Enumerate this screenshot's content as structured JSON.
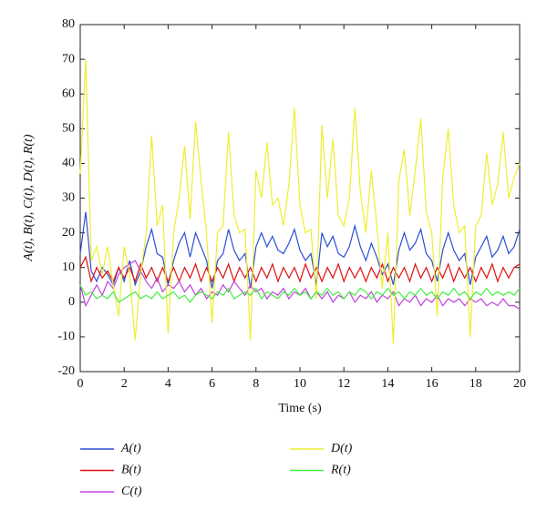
{
  "chart_data": {
    "type": "line",
    "xlabel": "Time (s)",
    "ylabel": "A(t), B(t), C(t), D(t), R(t)",
    "x": [
      0,
      0.25,
      0.5,
      0.75,
      1,
      1.25,
      1.5,
      1.75,
      2,
      2.25,
      2.5,
      2.75,
      3,
      3.25,
      3.5,
      3.75,
      4,
      4.25,
      4.5,
      4.75,
      5,
      5.25,
      5.5,
      5.75,
      6,
      6.25,
      6.5,
      6.75,
      7,
      7.25,
      7.5,
      7.75,
      8,
      8.25,
      8.5,
      8.75,
      9,
      9.25,
      9.5,
      9.75,
      10,
      10.25,
      10.5,
      10.75,
      11,
      11.25,
      11.5,
      11.75,
      12,
      12.25,
      12.5,
      12.75,
      13,
      13.25,
      13.5,
      13.75,
      14,
      14.25,
      14.5,
      14.75,
      15,
      15.25,
      15.5,
      15.75,
      16,
      16.25,
      16.5,
      16.75,
      17,
      17.25,
      17.5,
      17.75,
      18,
      18.25,
      18.5,
      18.75,
      19,
      19.25,
      19.5,
      19.75,
      20
    ],
    "series": [
      {
        "name": "A(t)",
        "color": "#2b4fd6",
        "values": [
          14,
          26,
          9,
          6,
          10,
          8,
          5,
          10,
          6,
          12,
          5,
          9,
          16,
          21,
          14,
          13,
          5,
          12,
          17,
          20,
          13,
          20,
          16,
          12,
          4,
          12,
          14,
          21,
          15,
          12,
          14,
          4,
          16,
          20,
          16,
          19,
          15,
          14,
          17,
          21,
          15,
          12,
          14,
          5,
          20,
          16,
          19,
          14,
          13,
          16,
          22,
          16,
          12,
          17,
          13,
          8,
          11,
          5,
          15,
          20,
          15,
          17,
          21,
          14,
          12,
          6,
          15,
          20,
          15,
          12,
          14,
          5,
          13,
          16,
          19,
          13,
          15,
          19,
          14,
          16,
          21
        ]
      },
      {
        "name": "B(t)",
        "color": "#e01010",
        "values": [
          10,
          13,
          6,
          10,
          7,
          9,
          6,
          10,
          7,
          10,
          6,
          11,
          7,
          10,
          6,
          10,
          6,
          10,
          6,
          10,
          7,
          11,
          6,
          10,
          6,
          10,
          7,
          11,
          6,
          10,
          7,
          10,
          6,
          10,
          7,
          11,
          6,
          10,
          7,
          10,
          6,
          11,
          7,
          10,
          6,
          10,
          7,
          11,
          6,
          10,
          7,
          10,
          6,
          10,
          7,
          11,
          6,
          10,
          7,
          10,
          6,
          11,
          7,
          10,
          6,
          10,
          7,
          11,
          6,
          10,
          7,
          10,
          6,
          10,
          7,
          11,
          6,
          10,
          7,
          10,
          11
        ]
      },
      {
        "name": "C(t)",
        "color": "#c040e0",
        "values": [
          5,
          -1,
          2,
          5,
          2,
          6,
          4,
          8,
          10,
          11,
          12,
          9,
          6,
          4,
          7,
          3,
          5,
          4,
          6,
          3,
          5,
          2,
          4,
          1,
          3,
          2,
          5,
          3,
          6,
          4,
          2,
          5,
          3,
          4,
          1,
          3,
          2,
          4,
          1,
          3,
          2,
          4,
          1,
          3,
          1,
          3,
          0,
          2,
          1,
          3,
          0,
          2,
          1,
          3,
          0,
          2,
          1,
          3,
          -1,
          1,
          0,
          2,
          -1,
          1,
          0,
          2,
          -1,
          1,
          0,
          1,
          -1,
          1,
          0,
          1,
          -1,
          0,
          -1,
          1,
          -1,
          -1,
          -2
        ]
      },
      {
        "name": "D(t)",
        "color": "#eeee30",
        "values": [
          37,
          70,
          12,
          16,
          8,
          16,
          5,
          -4,
          16,
          8,
          -11,
          8,
          20,
          48,
          22,
          28,
          -9,
          20,
          30,
          45,
          24,
          52,
          35,
          20,
          -6,
          20,
          22,
          49,
          25,
          20,
          21,
          -11,
          38,
          30,
          46,
          28,
          30,
          22,
          34,
          56,
          28,
          20,
          21,
          1,
          51,
          30,
          47,
          25,
          22,
          30,
          56,
          32,
          20,
          38,
          22,
          4,
          20,
          -12,
          35,
          44,
          25,
          38,
          53,
          26,
          20,
          -4,
          36,
          50,
          28,
          20,
          22,
          -10,
          22,
          25,
          43,
          28,
          34,
          49,
          30,
          36,
          40
        ]
      },
      {
        "name": "R(t)",
        "color": "#44ee44",
        "values": [
          5,
          2,
          3,
          1,
          2,
          1,
          3,
          0,
          1,
          2,
          3,
          1,
          2,
          1,
          3,
          1,
          2,
          3,
          1,
          2,
          0,
          2,
          3,
          2,
          1,
          3,
          2,
          4,
          1,
          2,
          3,
          2,
          4,
          1,
          3,
          2,
          1,
          3,
          2,
          4,
          2,
          3,
          1,
          3,
          2,
          4,
          2,
          3,
          1,
          3,
          2,
          4,
          3,
          1,
          3,
          2,
          4,
          2,
          3,
          1,
          3,
          2,
          4,
          2,
          3,
          1,
          3,
          2,
          4,
          2,
          3,
          1,
          3,
          2,
          4,
          2,
          3,
          2,
          3,
          2,
          4
        ]
      }
    ],
    "xlim": [
      0,
      20
    ],
    "xticks": [
      0,
      2,
      4,
      6,
      8,
      10,
      12,
      14,
      16,
      18,
      20
    ],
    "ylim": [
      -20,
      80
    ],
    "yticks": [
      -20,
      -10,
      0,
      10,
      20,
      30,
      40,
      50,
      60,
      70,
      80
    ],
    "grid": false
  }
}
